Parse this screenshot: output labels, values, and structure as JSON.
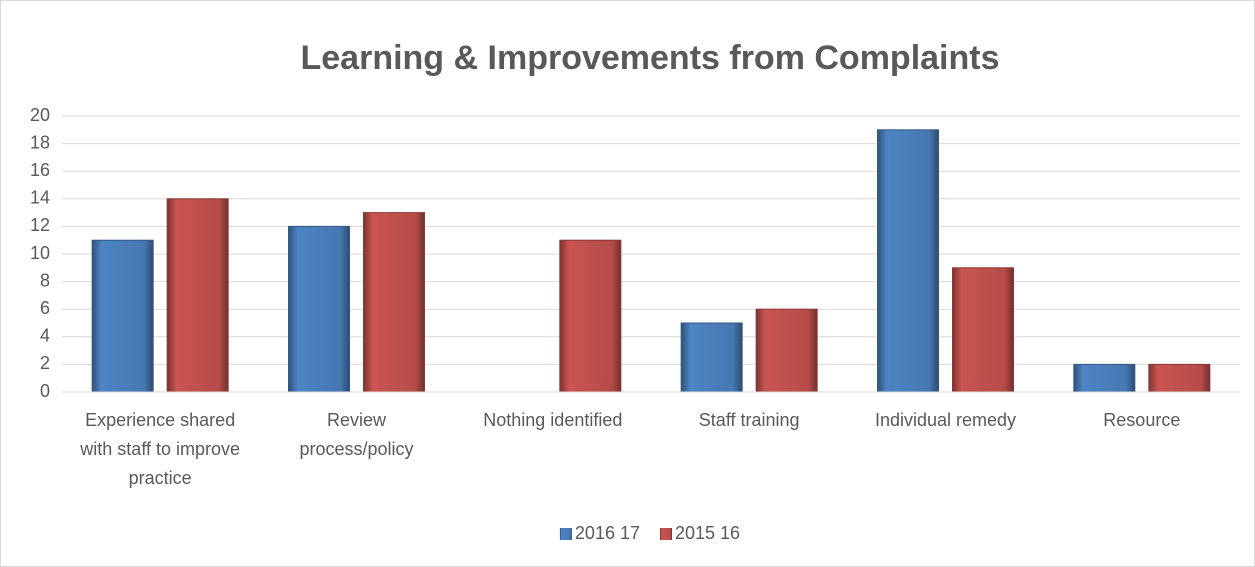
{
  "chart_data": {
    "type": "bar",
    "title": "Learning & Improvements from Complaints",
    "categories": [
      "Experience shared with staff to improve practice",
      "Review process/policy",
      "Nothing identified",
      "Staff training",
      "Individual remedy",
      "Resource"
    ],
    "series": [
      {
        "name": "2016 17",
        "color": "#4a7ebb",
        "values": [
          11,
          12,
          0,
          5,
          19,
          2
        ]
      },
      {
        "name": "2015 16",
        "color": "#c0504d",
        "values": [
          14,
          13,
          11,
          6,
          9,
          2
        ]
      }
    ],
    "ylim": [
      0,
      20
    ],
    "yticks": [
      0,
      2,
      4,
      6,
      8,
      10,
      12,
      14,
      16,
      18,
      20
    ],
    "grid": true,
    "legend": "bottom"
  }
}
